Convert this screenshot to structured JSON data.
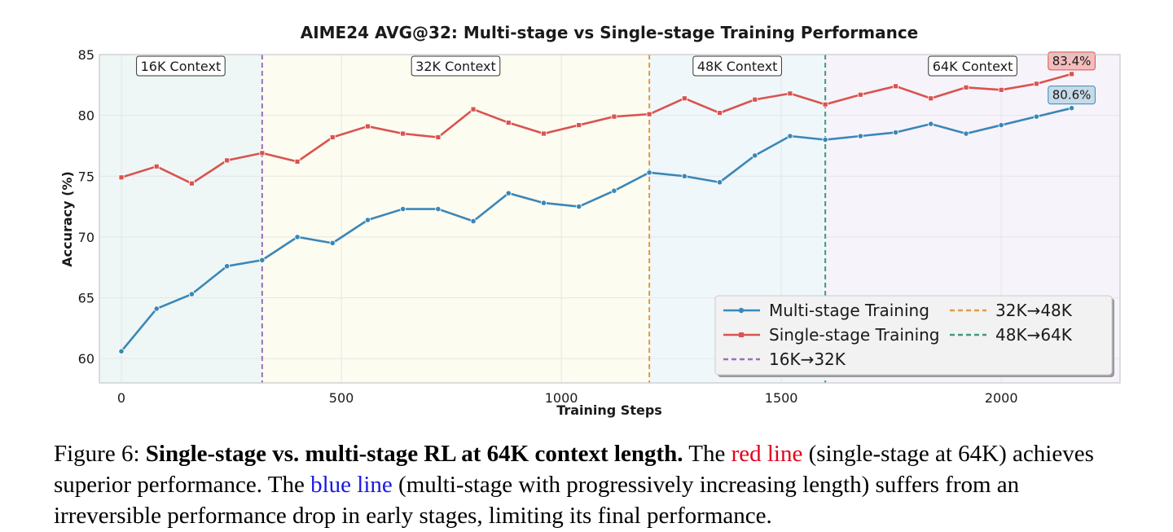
{
  "chart_data": {
    "type": "line",
    "title": "AIME24 AVG@32: Multi-stage vs Single-stage Training Performance",
    "xlabel": "Training Steps",
    "ylabel": "Accuracy (%)",
    "xlim": [
      -50,
      2270
    ],
    "ylim": [
      58,
      85
    ],
    "xticks": [
      0,
      500,
      1000,
      1500,
      2000
    ],
    "yticks": [
      60,
      65,
      70,
      75,
      80,
      85
    ],
    "grid": true,
    "legend_position": "lower-right",
    "x": [
      0,
      80,
      160,
      240,
      320,
      400,
      480,
      560,
      640,
      720,
      800,
      880,
      960,
      1040,
      1120,
      1200,
      1280,
      1360,
      1440,
      1520,
      1600,
      1680,
      1760,
      1840,
      1920,
      2000,
      2080,
      2160
    ],
    "series": [
      {
        "name": "Multi-stage Training",
        "color": "#3a87b8",
        "marker": "circle",
        "values": [
          60.6,
          64.1,
          65.3,
          67.6,
          68.1,
          70.0,
          69.5,
          71.4,
          72.3,
          72.3,
          71.3,
          73.6,
          72.8,
          72.5,
          73.8,
          75.3,
          75.0,
          74.5,
          76.7,
          78.3,
          78.0,
          78.3,
          78.6,
          79.3,
          78.5,
          79.2,
          79.9,
          80.6
        ],
        "end_label": "80.6%"
      },
      {
        "name": "Single-stage Training",
        "color": "#d9534f",
        "marker": "square",
        "values": [
          74.9,
          75.8,
          74.4,
          76.3,
          76.9,
          76.2,
          78.2,
          79.1,
          78.5,
          78.2,
          80.5,
          79.4,
          78.5,
          79.2,
          79.9,
          80.1,
          81.4,
          80.2,
          81.3,
          81.8,
          80.9,
          81.7,
          82.4,
          81.4,
          82.3,
          82.1,
          82.6,
          83.4
        ],
        "end_label": "83.4%"
      }
    ],
    "regions": [
      {
        "label": "16K Context",
        "x_start": -50,
        "x_end": 320,
        "color": "#eef7f5"
      },
      {
        "label": "32K Context",
        "x_start": 320,
        "x_end": 1200,
        "color": "#fdfcf1"
      },
      {
        "label": "48K Context",
        "x_start": 1200,
        "x_end": 1600,
        "color": "#eff7fa"
      },
      {
        "label": "64K Context",
        "x_start": 1600,
        "x_end": 2270,
        "color": "#f6f3fb"
      }
    ],
    "transitions": [
      {
        "name": "16K→32K",
        "x": 320,
        "color": "#9b6fb8"
      },
      {
        "name": "32K→48K",
        "x": 1200,
        "color": "#e39a46"
      },
      {
        "name": "48K→64K",
        "x": 1600,
        "color": "#3e9a80"
      }
    ]
  },
  "caption": {
    "prefix": "Figure 6: ",
    "bold": "Single-stage vs. multi-stage RL at 64K context length.",
    "part1": " The ",
    "red": "red line",
    "part2": " (single-stage at 64K) achieves superior performance. The ",
    "blue": "blue line",
    "part3": " (multi-stage with progressively increasing length) suffers from an irreversible performance drop in early stages, limiting its final performance."
  }
}
